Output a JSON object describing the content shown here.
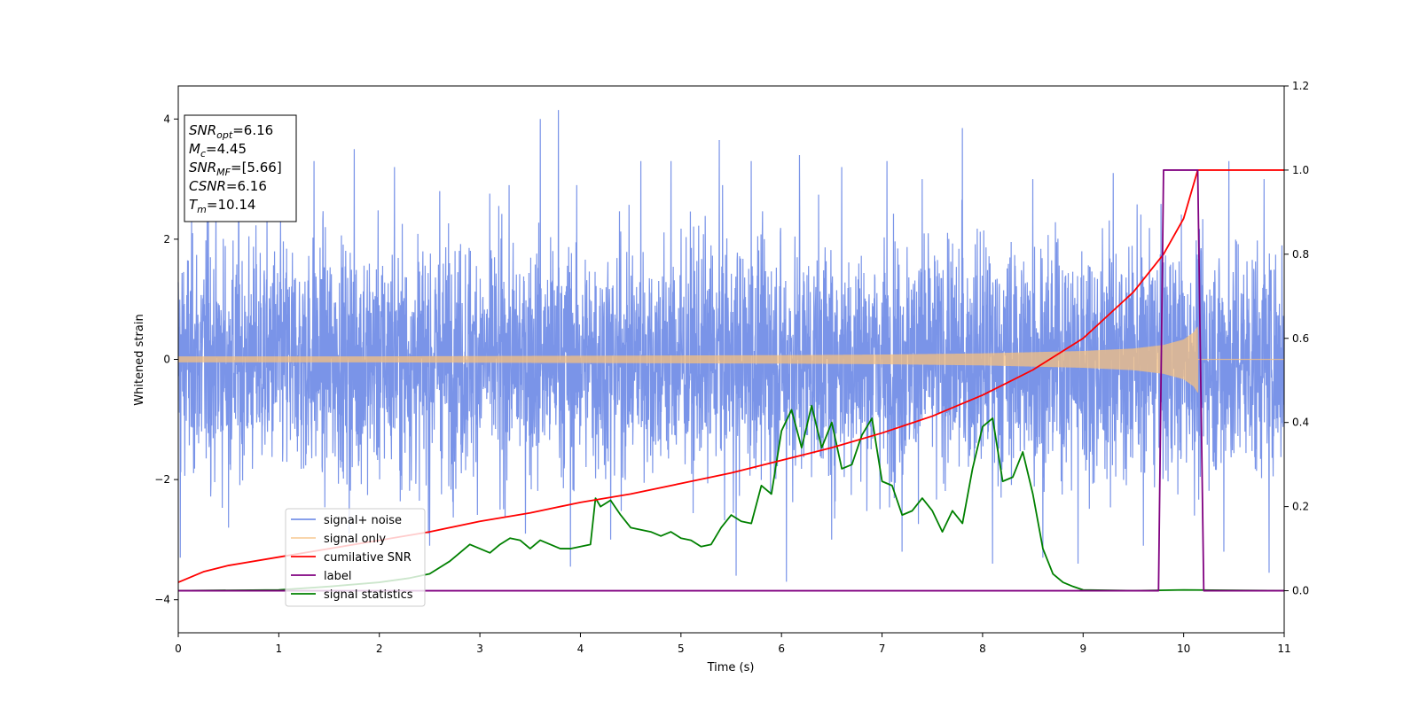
{
  "chart_data": {
    "type": "line",
    "title": "",
    "xlabel": "Time (s)",
    "ylabel": "Whitened strain",
    "xlim": [
      0,
      11
    ],
    "ylim": [
      -4.55,
      4.55
    ],
    "y2lim": [
      -0.1,
      1.2
    ],
    "x_ticks": [
      0,
      1,
      2,
      3,
      4,
      5,
      6,
      7,
      8,
      9,
      10,
      11
    ],
    "y_ticks": [
      -4,
      -2,
      0,
      2,
      4
    ],
    "y2_ticks": [
      0.0,
      0.2,
      0.4,
      0.6,
      0.8,
      1.0,
      1.2
    ],
    "grid": false,
    "legend": {
      "position": "lower-left",
      "entries": [
        {
          "label": "signal+ noise",
          "color": "#7792e8"
        },
        {
          "label": "signal only",
          "color": "#f5c080"
        },
        {
          "label": "cumilative SNR",
          "color": "#ff0000"
        },
        {
          "label": "label",
          "color": "#800080"
        },
        {
          "label": "signal statistics",
          "color": "#008000"
        }
      ]
    },
    "annotation": {
      "position": "top-left",
      "lines": [
        {
          "sym": "SNR",
          "sub": "opt",
          "val": "=6.16"
        },
        {
          "sym": "M",
          "sub": "c",
          "val": "=4.45"
        },
        {
          "sym": "SNR",
          "sub": "MF",
          "val": "=[5.66]"
        },
        {
          "sym": "CSNR",
          "sub": "",
          "val": "=6.16"
        },
        {
          "sym": "T",
          "sub": "m",
          "val": "=10.14"
        }
      ]
    },
    "series": [
      {
        "name": "signal+ noise",
        "axis": "left",
        "color": "#7792e8",
        "kind": "noise",
        "x_range": [
          0,
          11
        ],
        "typical_amplitude": 2.2,
        "peaks": [
          [
            0.3,
            2.6
          ],
          [
            0.6,
            2.9
          ],
          [
            1.35,
            3.3
          ],
          [
            1.75,
            3.5
          ],
          [
            2.15,
            3.2
          ],
          [
            2.6,
            2.8
          ],
          [
            3.6,
            4.0
          ],
          [
            3.78,
            4.15
          ],
          [
            4.6,
            3.3
          ],
          [
            4.9,
            3.3
          ],
          [
            5.38,
            3.65
          ],
          [
            5.7,
            3.3
          ],
          [
            6.18,
            3.4
          ],
          [
            6.6,
            3.2
          ],
          [
            7.05,
            3.3
          ],
          [
            7.4,
            3.0
          ],
          [
            7.8,
            3.85
          ],
          [
            8.5,
            3.0
          ],
          [
            9.3,
            3.1
          ],
          [
            10.45,
            3.3
          ],
          [
            10.8,
            3.0
          ]
        ],
        "troughs": [
          [
            0.02,
            -3.3
          ],
          [
            0.5,
            -2.8
          ],
          [
            1.7,
            -2.9
          ],
          [
            2.5,
            -3.1
          ],
          [
            3.2,
            -2.5
          ],
          [
            3.9,
            -3.45
          ],
          [
            4.3,
            -3.0
          ],
          [
            5.55,
            -3.6
          ],
          [
            6.05,
            -3.7
          ],
          [
            6.5,
            -3.0
          ],
          [
            7.2,
            -3.2
          ],
          [
            8.1,
            -3.4
          ],
          [
            8.6,
            -3.3
          ],
          [
            8.95,
            -3.4
          ],
          [
            9.6,
            -3.1
          ],
          [
            10.4,
            -3.2
          ],
          [
            10.85,
            -3.55
          ]
        ]
      },
      {
        "name": "signal only",
        "axis": "left",
        "color": "#f5c080",
        "kind": "chirp",
        "x_range": [
          0,
          10.14
        ],
        "envelope": {
          "x": [
            0,
            2,
            4,
            6,
            7,
            8,
            8.5,
            9,
            9.5,
            9.8,
            10.0,
            10.1,
            10.14
          ],
          "y": [
            0.05,
            0.05,
            0.06,
            0.07,
            0.08,
            0.1,
            0.12,
            0.14,
            0.18,
            0.24,
            0.33,
            0.45,
            0.55
          ]
        }
      },
      {
        "name": "cumilative SNR",
        "axis": "right",
        "color": "#ff0000",
        "x": [
          0,
          0.25,
          0.5,
          1,
          1.5,
          2,
          2.5,
          3,
          3.5,
          4,
          4.5,
          5,
          5.5,
          6,
          6.5,
          7,
          7.5,
          8,
          8.5,
          9,
          9.5,
          9.8,
          10.0,
          10.14,
          11
        ],
        "y": [
          0.02,
          0.045,
          0.06,
          0.08,
          0.1,
          0.12,
          0.14,
          0.165,
          0.185,
          0.21,
          0.23,
          0.255,
          0.28,
          0.31,
          0.34,
          0.375,
          0.415,
          0.465,
          0.525,
          0.6,
          0.71,
          0.8,
          0.885,
          1.0,
          1.0
        ]
      },
      {
        "name": "label",
        "axis": "right",
        "color": "#800080",
        "x": [
          0,
          9.75,
          9.8,
          10.14,
          10.2,
          11
        ],
        "y": [
          0,
          0,
          1,
          1,
          0,
          0
        ]
      },
      {
        "name": "signal statistics",
        "axis": "right",
        "color": "#008000",
        "x": [
          0,
          1.0,
          1.5,
          2.0,
          2.3,
          2.5,
          2.7,
          2.9,
          3.0,
          3.1,
          3.2,
          3.3,
          3.4,
          3.5,
          3.6,
          3.7,
          3.8,
          3.9,
          4.0,
          4.1,
          4.15,
          4.2,
          4.3,
          4.4,
          4.5,
          4.6,
          4.7,
          4.8,
          4.9,
          5.0,
          5.1,
          5.2,
          5.3,
          5.4,
          5.5,
          5.6,
          5.7,
          5.8,
          5.9,
          6.0,
          6.1,
          6.2,
          6.3,
          6.4,
          6.5,
          6.6,
          6.7,
          6.8,
          6.9,
          7.0,
          7.1,
          7.2,
          7.3,
          7.4,
          7.5,
          7.6,
          7.7,
          7.8,
          7.9,
          8.0,
          8.1,
          8.2,
          8.3,
          8.4,
          8.5,
          8.6,
          8.7,
          8.8,
          8.9,
          9.0,
          9.5,
          10.0,
          11
        ],
        "y": [
          0.0,
          0.002,
          0.01,
          0.02,
          0.03,
          0.04,
          0.07,
          0.11,
          0.1,
          0.09,
          0.11,
          0.125,
          0.12,
          0.1,
          0.12,
          0.11,
          0.1,
          0.1,
          0.105,
          0.11,
          0.22,
          0.2,
          0.215,
          0.18,
          0.15,
          0.145,
          0.14,
          0.13,
          0.14,
          0.125,
          0.12,
          0.105,
          0.11,
          0.15,
          0.18,
          0.165,
          0.16,
          0.25,
          0.23,
          0.38,
          0.43,
          0.34,
          0.44,
          0.34,
          0.4,
          0.29,
          0.3,
          0.37,
          0.41,
          0.26,
          0.25,
          0.18,
          0.19,
          0.22,
          0.19,
          0.14,
          0.19,
          0.16,
          0.29,
          0.39,
          0.41,
          0.26,
          0.27,
          0.33,
          0.23,
          0.1,
          0.04,
          0.02,
          0.01,
          0.002,
          0.0,
          0.002,
          0.0
        ]
      }
    ]
  }
}
